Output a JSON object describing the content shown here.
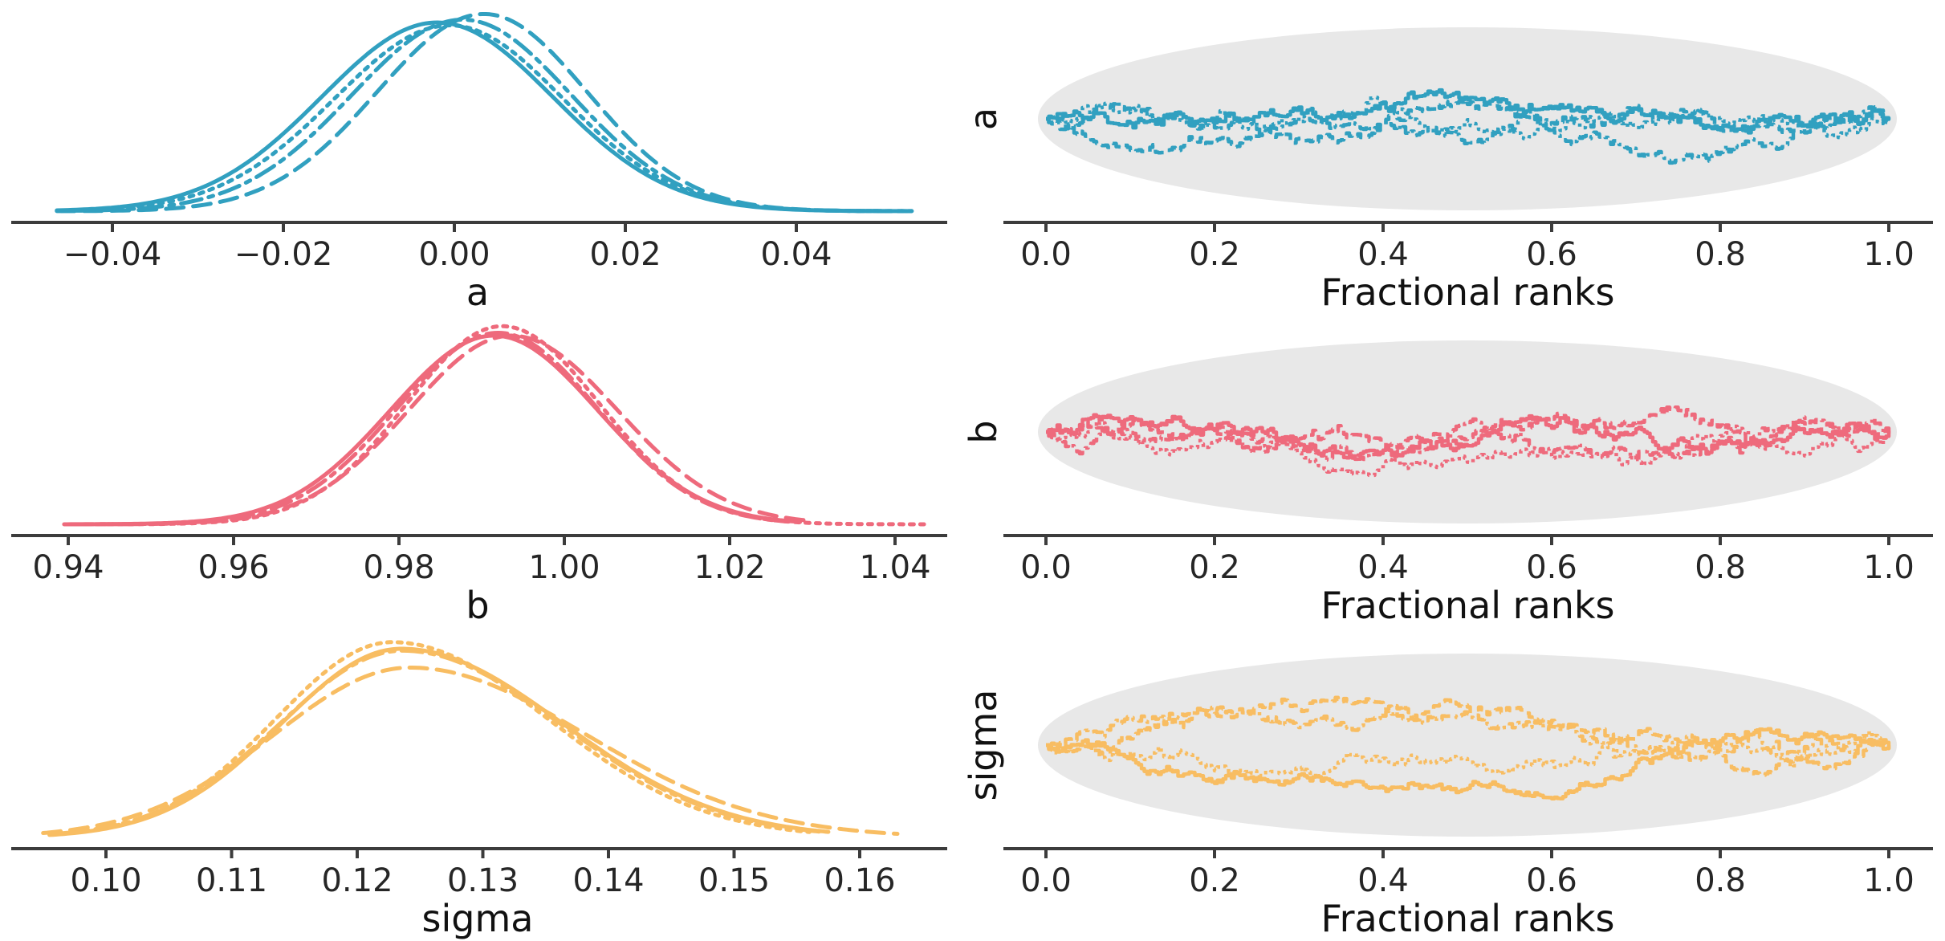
{
  "figure": {
    "background": "#ffffff",
    "description": "MCMC diagnostics: per-chain kernel density estimates (left column) and fractional-rank trace plots with confidence ellipse (right column) for parameters a, b and sigma",
    "spine_color": "#3c3c3c",
    "tick_label_color": "#262626",
    "axis_label_color": "#111111",
    "ellipse_color": "#e8e8e8",
    "palette": {
      "a": "#31a0c0",
      "b": "#ee6a7c",
      "sigma": "#f8bd62"
    },
    "line_styles": [
      "solid",
      "dashed",
      "dashdot",
      "dotted"
    ]
  },
  "chart_data": [
    {
      "id": "density-a",
      "type": "line",
      "kind": "kde-density",
      "param": "a",
      "xlabel": "a",
      "color": "#31a0c0",
      "x_ticks": [
        -0.04,
        -0.02,
        0.0,
        0.02,
        0.04
      ],
      "x_tick_labels": [
        "−0.04",
        "−0.02",
        "0.00",
        "0.02",
        "0.04"
      ],
      "xlim": [
        -0.048,
        0.056
      ],
      "chains": [
        {
          "style": "solid",
          "mean": -0.002,
          "sd_left": 0.0135,
          "sd_right": 0.0135,
          "peak": 1.0,
          "x_start": -0.0465,
          "x_end": 0.0535
        },
        {
          "style": "dashed",
          "mean": 0.0035,
          "sd_left": 0.0125,
          "sd_right": 0.012,
          "peak": 1.045,
          "x_start": -0.0465,
          "x_end": 0.053
        },
        {
          "style": "dashdot",
          "mean": 0.001,
          "sd_left": 0.013,
          "sd_right": 0.0127,
          "peak": 1.015,
          "x_start": -0.046,
          "x_end": 0.0525
        },
        {
          "style": "dotted",
          "mean": -0.0005,
          "sd_left": 0.0135,
          "sd_right": 0.0132,
          "peak": 0.985,
          "x_start": -0.0455,
          "x_end": 0.0535
        }
      ]
    },
    {
      "id": "rank-a",
      "type": "line",
      "kind": "rank-trace",
      "param": "a",
      "ylabel": "a",
      "xlabel": "Fractional ranks",
      "color": "#31a0c0",
      "x_ticks": [
        0.0,
        0.2,
        0.4,
        0.6,
        0.8,
        1.0
      ],
      "x_tick_labels": [
        "0.0",
        "0.2",
        "0.4",
        "0.6",
        "0.8",
        "1.0"
      ],
      "xlim": [
        0,
        1
      ],
      "ellipse_fill": "#e8e8e8",
      "chains": [
        {
          "style": "solid",
          "seed": 3
        },
        {
          "style": "dashed",
          "seed": 17
        },
        {
          "style": "dashdot",
          "seed": 29
        },
        {
          "style": "dotted",
          "seed": 43
        }
      ]
    },
    {
      "id": "density-b",
      "type": "line",
      "kind": "kde-density",
      "param": "b",
      "xlabel": "b",
      "color": "#ee6a7c",
      "x_ticks": [
        0.94,
        0.96,
        0.98,
        1.0,
        1.02,
        1.04
      ],
      "x_tick_labels": [
        "0.94",
        "0.96",
        "0.98",
        "1.00",
        "1.02",
        "1.04"
      ],
      "xlim": [
        0.938,
        1.046
      ],
      "chains": [
        {
          "style": "solid",
          "mean": 0.9915,
          "sd_left": 0.0125,
          "sd_right": 0.0125,
          "peak": 1.0,
          "x_start": 0.9395,
          "x_end": 1.0285
        },
        {
          "style": "dashed",
          "mean": 0.9936,
          "sd_left": 0.0124,
          "sd_right": 0.0128,
          "peak": 1.0,
          "x_start": 0.94,
          "x_end": 1.03
        },
        {
          "style": "dashdot",
          "mean": 0.992,
          "sd_left": 0.0122,
          "sd_right": 0.012,
          "peak": 1.015,
          "x_start": 0.9405,
          "x_end": 1.027
        },
        {
          "style": "dotted",
          "mean": 0.9925,
          "sd_left": 0.0116,
          "sd_right": 0.0118,
          "peak": 1.05,
          "x_start": 0.941,
          "x_end": 1.0435
        }
      ]
    },
    {
      "id": "rank-b",
      "type": "line",
      "kind": "rank-trace",
      "param": "b",
      "ylabel": "b",
      "xlabel": "Fractional ranks",
      "color": "#ee6a7c",
      "x_ticks": [
        0.0,
        0.2,
        0.4,
        0.6,
        0.8,
        1.0
      ],
      "x_tick_labels": [
        "0.0",
        "0.2",
        "0.4",
        "0.6",
        "0.8",
        "1.0"
      ],
      "xlim": [
        0,
        1
      ],
      "ellipse_fill": "#e8e8e8",
      "chains": [
        {
          "style": "solid",
          "seed": 7
        },
        {
          "style": "dashed",
          "seed": 19
        },
        {
          "style": "dashdot",
          "seed": 31
        },
        {
          "style": "dotted",
          "seed": 53
        }
      ]
    },
    {
      "id": "density-sigma",
      "type": "line",
      "kind": "kde-density",
      "param": "sigma",
      "xlabel": "sigma",
      "color": "#f8bd62",
      "x_ticks": [
        0.1,
        0.11,
        0.12,
        0.13,
        0.14,
        0.15,
        0.16
      ],
      "x_tick_labels": [
        "0.10",
        "0.11",
        "0.12",
        "0.13",
        "0.14",
        "0.15",
        "0.16"
      ],
      "xlim": [
        0.094,
        0.165
      ],
      "chains": [
        {
          "style": "solid",
          "mean": 0.1235,
          "sd_left": 0.0095,
          "sd_right": 0.0128,
          "peak": 1.0,
          "x_start": 0.0955,
          "x_end": 0.1575
        },
        {
          "style": "dashed",
          "mean": 0.1242,
          "sd_left": 0.0108,
          "sd_right": 0.014,
          "peak": 0.9,
          "x_start": 0.095,
          "x_end": 0.163
        },
        {
          "style": "dashdot",
          "mean": 0.1236,
          "sd_left": 0.0098,
          "sd_right": 0.0126,
          "peak": 0.99,
          "x_start": 0.096,
          "x_end": 0.157
        },
        {
          "style": "dotted",
          "mean": 0.1228,
          "sd_left": 0.0093,
          "sd_right": 0.0124,
          "peak": 1.035,
          "x_start": 0.0958,
          "x_end": 0.156
        }
      ]
    },
    {
      "id": "rank-sigma",
      "type": "line",
      "kind": "rank-trace",
      "param": "sigma",
      "ylabel": "sigma",
      "xlabel": "Fractional ranks",
      "color": "#f8bd62",
      "x_ticks": [
        0.0,
        0.2,
        0.4,
        0.6,
        0.8,
        1.0
      ],
      "x_tick_labels": [
        "0.0",
        "0.2",
        "0.4",
        "0.6",
        "0.8",
        "1.0"
      ],
      "xlim": [
        0,
        1
      ],
      "ellipse_fill": "#e8e8e8",
      "chains": [
        {
          "style": "solid",
          "seed": 11
        },
        {
          "style": "dashed",
          "seed": 23
        },
        {
          "style": "dashdot",
          "seed": 37
        },
        {
          "style": "dotted",
          "seed": 61
        }
      ]
    }
  ]
}
